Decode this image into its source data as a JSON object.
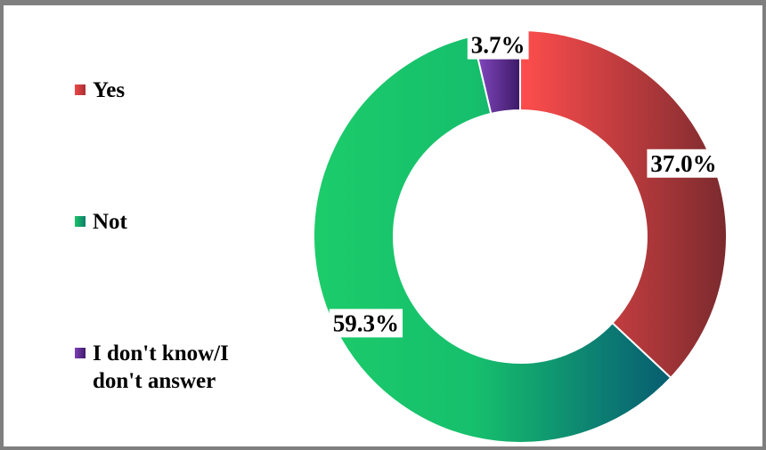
{
  "chart_data": {
    "type": "pie",
    "variant": "donut",
    "title": "",
    "categories": [
      "Yes",
      "Not",
      "I don't know/I don't answer"
    ],
    "values": [
      37.0,
      59.3,
      3.7
    ],
    "data_labels": [
      "37.0%",
      "59.3%",
      "3.7%"
    ],
    "colors": [
      "#ef4a4a",
      "#1cc46a",
      "#5b2c8f"
    ],
    "legend_placement": "left",
    "legend": {
      "items": [
        {
          "label": "Yes",
          "color": "#e8403f"
        },
        {
          "label": "Not",
          "color": "#18b46a"
        },
        {
          "label": "I don't know/I\ndon't answer",
          "color": "#5b2c8f"
        }
      ]
    }
  }
}
